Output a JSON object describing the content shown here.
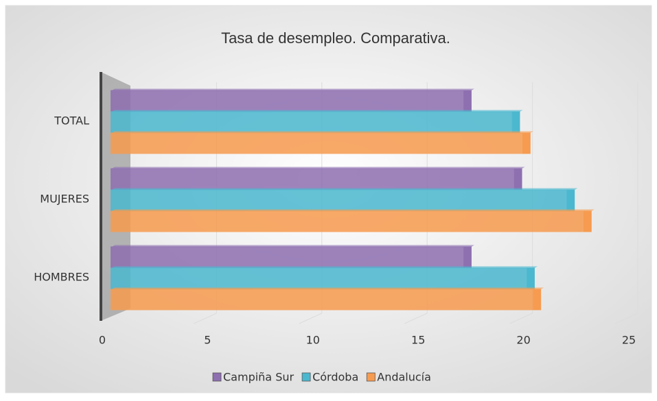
{
  "chart_data": {
    "type": "bar",
    "orientation": "horizontal",
    "title": "Tasa de desempleo. Comparativa.",
    "categories": [
      "TOTAL",
      "MUJERES",
      "HOMBRES"
    ],
    "series": [
      {
        "name": "Campiña Sur",
        "color": "#8e6fb0",
        "values": [
          17.5,
          19.9,
          17.5
        ]
      },
      {
        "name": "Córdoba",
        "color": "#4bb8cf",
        "values": [
          19.8,
          22.4,
          20.5
        ]
      },
      {
        "name": "Andalucía",
        "color": "#f79b4f",
        "values": [
          20.3,
          23.2,
          20.8
        ]
      }
    ],
    "xlim": [
      0,
      25
    ],
    "xticks": [
      0,
      5,
      10,
      15,
      20,
      25
    ],
    "grid": true,
    "legend": "bottom"
  }
}
